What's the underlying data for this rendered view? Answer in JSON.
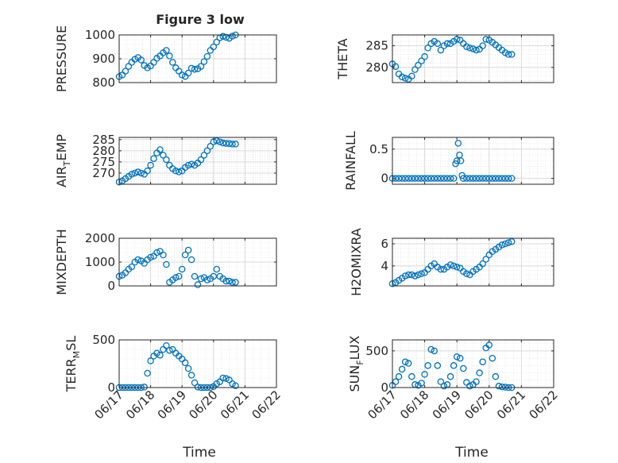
{
  "figure": {
    "title": "Figure 3 low",
    "xlabel": "Time"
  },
  "style": {
    "marker_color": "#0072BD",
    "axes_color": "#262626",
    "grid_color": "#d9d9d9"
  },
  "chart_data": [
    {
      "type": "scatter",
      "id": "pressure",
      "ylabel": {
        "main": "PRESSURE",
        "sub": ""
      },
      "ylim": [
        800,
        1000
      ],
      "yticks": [
        800,
        900,
        1000
      ],
      "ytick_labels": [
        "800",
        "900",
        "1000"
      ],
      "xlim": [
        0,
        5
      ],
      "x": [
        0,
        0.1,
        0.2,
        0.3,
        0.4,
        0.5,
        0.6,
        0.7,
        0.8,
        0.9,
        1.0,
        1.1,
        1.2,
        1.3,
        1.4,
        1.5,
        1.6,
        1.7,
        1.8,
        1.9,
        2.0,
        2.1,
        2.2,
        2.3,
        2.4,
        2.5,
        2.6,
        2.7,
        2.8,
        2.9,
        3.0,
        3.1,
        3.2,
        3.3,
        3.4,
        3.5,
        3.6,
        3.7
      ],
      "y": [
        825,
        832,
        848,
        868,
        885,
        898,
        905,
        895,
        872,
        862,
        870,
        885,
        902,
        912,
        925,
        935,
        912,
        885,
        862,
        848,
        832,
        826,
        840,
        860,
        856,
        858,
        868,
        888,
        910,
        935,
        950,
        970,
        988,
        994,
        990,
        986,
        995,
        1000
      ],
      "grid": true,
      "minor_grid": true
    },
    {
      "type": "scatter",
      "id": "theta",
      "ylabel": {
        "main": "THETA",
        "sub": ""
      },
      "ylim": [
        276.5,
        287.5
      ],
      "yticks": [
        280,
        285
      ],
      "ytick_labels": [
        "280",
        "285"
      ],
      "xlim": [
        0,
        5
      ],
      "x": [
        0,
        0.1,
        0.2,
        0.3,
        0.4,
        0.5,
        0.6,
        0.7,
        0.8,
        0.9,
        1.0,
        1.1,
        1.2,
        1.3,
        1.4,
        1.5,
        1.6,
        1.7,
        1.8,
        1.9,
        2.0,
        2.1,
        2.2,
        2.3,
        2.4,
        2.5,
        2.6,
        2.7,
        2.8,
        2.9,
        3.0,
        3.1,
        3.2,
        3.3,
        3.4,
        3.5,
        3.6,
        3.7
      ],
      "y": [
        280.8,
        280.2,
        278.5,
        277.8,
        277.5,
        277.3,
        278,
        279.5,
        280.5,
        281.5,
        282.5,
        284.5,
        285.5,
        286,
        285.5,
        284,
        285,
        285.5,
        285.5,
        286,
        286.5,
        286.3,
        285.5,
        284.8,
        284.5,
        284.3,
        284,
        284.2,
        285,
        286.5,
        286.3,
        285.8,
        285.2,
        284.6,
        284,
        283.4,
        283,
        283
      ],
      "grid": true,
      "minor_grid": true
    },
    {
      "type": "scatter",
      "id": "air-temp",
      "ylabel": {
        "main": "AIR",
        "sub": "T",
        "rest": "EMP"
      },
      "ylim": [
        265,
        286
      ],
      "yticks": [
        270,
        275,
        280,
        285
      ],
      "ytick_labels": [
        "270",
        "275",
        "280",
        "285"
      ],
      "xlim": [
        0,
        5
      ],
      "x": [
        0,
        0.1,
        0.2,
        0.3,
        0.4,
        0.5,
        0.6,
        0.7,
        0.8,
        0.9,
        1.0,
        1.1,
        1.2,
        1.3,
        1.4,
        1.5,
        1.6,
        1.7,
        1.8,
        1.9,
        2.0,
        2.1,
        2.2,
        2.3,
        2.4,
        2.5,
        2.6,
        2.7,
        2.8,
        2.9,
        3.0,
        3.1,
        3.2,
        3.3,
        3.4,
        3.5,
        3.6,
        3.7
      ],
      "y": [
        266,
        266.5,
        267.5,
        268.5,
        269.5,
        270,
        270.5,
        270,
        269.5,
        271,
        273.5,
        276.5,
        279,
        280.5,
        278,
        276,
        273.5,
        272,
        271,
        270.5,
        271,
        272.5,
        273.5,
        274,
        273.5,
        274.5,
        276,
        278,
        280,
        282,
        284,
        284.5,
        284,
        283.5,
        283.3,
        283.2,
        283,
        283
      ],
      "grid": true,
      "minor_grid": true
    },
    {
      "type": "scatter",
      "id": "rainfall",
      "ylabel": {
        "main": "RAINFALL",
        "sub": ""
      },
      "ylim": [
        -0.1,
        0.7
      ],
      "yticks": [
        0,
        0.5
      ],
      "ytick_labels": [
        "0",
        "0.5"
      ],
      "xlim": [
        0,
        5
      ],
      "x": [
        0,
        0.1,
        0.2,
        0.3,
        0.4,
        0.5,
        0.6,
        0.7,
        0.8,
        0.9,
        1.0,
        1.1,
        1.2,
        1.3,
        1.4,
        1.5,
        1.6,
        1.7,
        1.8,
        1.9,
        1.96,
        2.0,
        2.04,
        2.08,
        2.12,
        2.16,
        2.2,
        2.3,
        2.4,
        2.5,
        2.6,
        2.7,
        2.8,
        2.9,
        3.0,
        3.1,
        3.2,
        3.3,
        3.4,
        3.5,
        3.6,
        3.7
      ],
      "y": [
        0,
        0,
        0,
        0,
        0,
        0,
        0,
        0,
        0,
        0,
        0,
        0,
        0,
        0,
        0,
        0,
        0,
        0,
        0,
        0,
        0.25,
        0.3,
        0.6,
        0.4,
        0.3,
        0.05,
        0,
        0,
        0,
        0,
        0,
        0,
        0,
        0,
        0,
        0,
        0,
        0,
        0,
        0,
        0,
        0
      ],
      "grid": true,
      "minor_grid": true
    },
    {
      "type": "scatter",
      "id": "mixdepth",
      "ylabel": {
        "main": "MIXDEPTH",
        "sub": ""
      },
      "ylim": [
        0,
        2000
      ],
      "yticks": [
        0,
        1000,
        2000
      ],
      "ytick_labels": [
        "0",
        "1000",
        "2000"
      ],
      "xlim": [
        0,
        5
      ],
      "x": [
        0,
        0.1,
        0.2,
        0.3,
        0.4,
        0.5,
        0.6,
        0.7,
        0.8,
        0.9,
        1.0,
        1.1,
        1.2,
        1.3,
        1.4,
        1.5,
        1.6,
        1.7,
        1.8,
        1.9,
        2.0,
        2.1,
        2.2,
        2.3,
        2.4,
        2.5,
        2.6,
        2.7,
        2.8,
        2.9,
        3.0,
        3.1,
        3.2,
        3.3,
        3.4,
        3.5,
        3.6,
        3.7
      ],
      "y": [
        400,
        450,
        550,
        700,
        800,
        1000,
        1100,
        1050,
        950,
        1100,
        1200,
        1250,
        1400,
        1450,
        1300,
        900,
        150,
        250,
        350,
        400,
        700,
        1300,
        1500,
        1100,
        400,
        50,
        300,
        350,
        250,
        300,
        400,
        700,
        400,
        300,
        200,
        200,
        150,
        150
      ],
      "grid": true,
      "minor_grid": true
    },
    {
      "type": "scatter",
      "id": "h2omixra",
      "ylabel": {
        "main": "H2OMIXRA",
        "sub": ""
      },
      "ylim": [
        2.2,
        6.5
      ],
      "yticks": [
        4,
        6
      ],
      "ytick_labels": [
        "4",
        "6"
      ],
      "xlim": [
        0,
        5
      ],
      "x": [
        0,
        0.1,
        0.2,
        0.3,
        0.4,
        0.5,
        0.6,
        0.7,
        0.8,
        0.9,
        1.0,
        1.1,
        1.2,
        1.3,
        1.4,
        1.5,
        1.6,
        1.7,
        1.8,
        1.9,
        2.0,
        2.1,
        2.2,
        2.3,
        2.4,
        2.5,
        2.6,
        2.7,
        2.8,
        2.9,
        3.0,
        3.1,
        3.2,
        3.3,
        3.4,
        3.5,
        3.6,
        3.7
      ],
      "y": [
        2.4,
        2.5,
        2.7,
        2.9,
        3.1,
        3.2,
        3.2,
        3.1,
        3.2,
        3.3,
        3.4,
        3.7,
        4.0,
        4.2,
        3.9,
        3.7,
        3.7,
        3.9,
        4.1,
        4.0,
        3.9,
        3.8,
        3.5,
        3.3,
        3.2,
        3.5,
        3.7,
        3.9,
        4.2,
        4.6,
        5.0,
        5.3,
        5.5,
        5.7,
        5.9,
        6.0,
        6.1,
        6.2
      ],
      "grid": true,
      "minor_grid": true
    },
    {
      "type": "scatter",
      "id": "terr-msl",
      "ylabel": {
        "main": "TERR",
        "sub": "M",
        "rest": "SL"
      },
      "ylim": [
        0,
        500
      ],
      "yticks": [
        0,
        500
      ],
      "ytick_labels": [
        "0",
        "500"
      ],
      "xlim": [
        0,
        5
      ],
      "xticks": [
        0,
        1,
        2,
        3,
        4,
        5
      ],
      "xtick_labels": [
        "06/17",
        "06/18",
        "06/19",
        "06/20",
        "06/21",
        "06/22"
      ],
      "x": [
        0,
        0.1,
        0.2,
        0.3,
        0.4,
        0.5,
        0.6,
        0.7,
        0.8,
        0.9,
        1.0,
        1.1,
        1.2,
        1.3,
        1.4,
        1.5,
        1.6,
        1.7,
        1.8,
        1.9,
        2.0,
        2.1,
        2.2,
        2.3,
        2.4,
        2.5,
        2.6,
        2.7,
        2.8,
        2.9,
        3.0,
        3.1,
        3.2,
        3.3,
        3.4,
        3.5,
        3.6,
        3.7
      ],
      "y": [
        0,
        0,
        0,
        0,
        0,
        0,
        0,
        0,
        5,
        150,
        280,
        330,
        360,
        340,
        400,
        440,
        390,
        400,
        360,
        330,
        300,
        260,
        200,
        130,
        50,
        5,
        0,
        0,
        0,
        0,
        10,
        40,
        60,
        100,
        95,
        80,
        40,
        20
      ],
      "grid": true,
      "minor_grid": true
    },
    {
      "type": "scatter",
      "id": "sun-flux",
      "ylabel": {
        "main": "SUN",
        "sub": "F",
        "rest": "LUX"
      },
      "ylim": [
        0,
        650
      ],
      "yticks": [
        0,
        500
      ],
      "ytick_labels": [
        "0",
        "500"
      ],
      "xlim": [
        0,
        5
      ],
      "xticks": [
        0,
        1,
        2,
        3,
        4,
        5
      ],
      "xtick_labels": [
        "06/17",
        "06/18",
        "06/19",
        "06/20",
        "06/21",
        "06/22"
      ],
      "x": [
        0,
        0.1,
        0.2,
        0.3,
        0.4,
        0.5,
        0.6,
        0.7,
        0.8,
        0.9,
        1.0,
        1.1,
        1.2,
        1.3,
        1.4,
        1.5,
        1.6,
        1.7,
        1.8,
        1.9,
        2.0,
        2.1,
        2.2,
        2.3,
        2.4,
        2.5,
        2.6,
        2.7,
        2.8,
        2.9,
        3.0,
        3.1,
        3.2,
        3.3,
        3.4,
        3.5,
        3.6,
        3.7
      ],
      "y": [
        30,
        80,
        150,
        250,
        350,
        330,
        150,
        40,
        30,
        60,
        180,
        300,
        520,
        500,
        300,
        80,
        20,
        40,
        150,
        300,
        420,
        400,
        260,
        70,
        20,
        40,
        80,
        200,
        350,
        540,
        580,
        400,
        150,
        20,
        10,
        5,
        0,
        0
      ],
      "grid": true,
      "minor_grid": true
    }
  ]
}
